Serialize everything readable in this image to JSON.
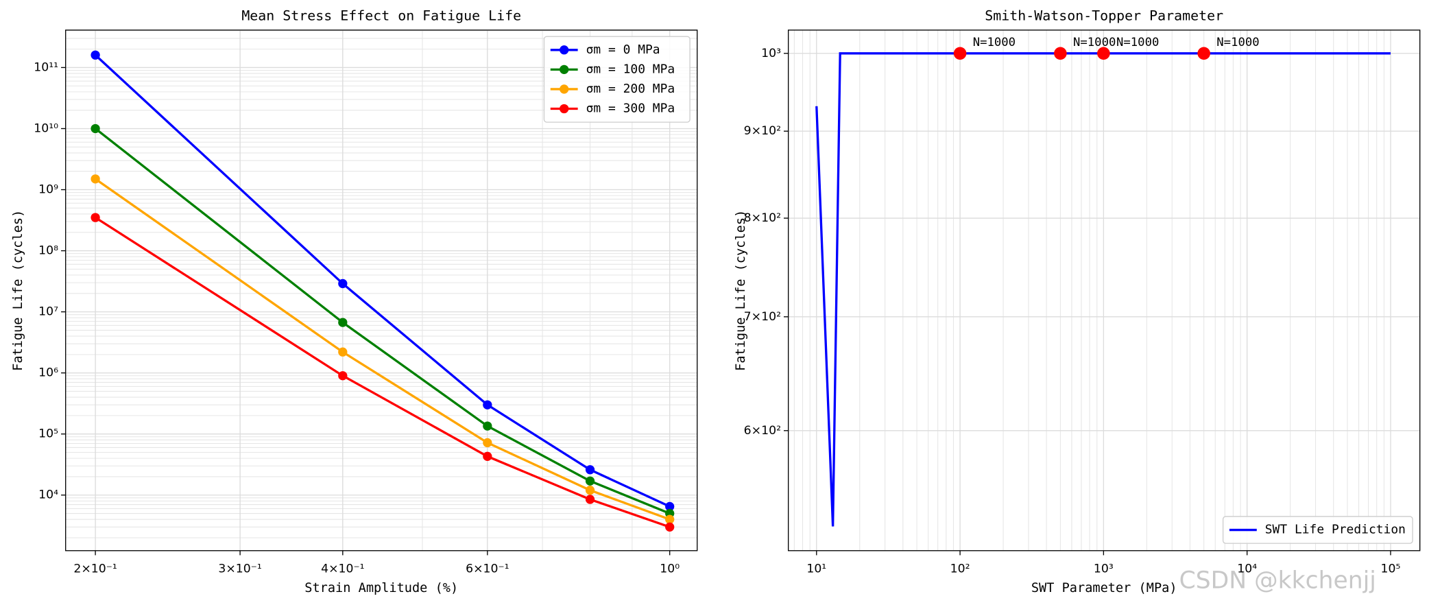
{
  "chart_data": [
    {
      "type": "line",
      "title": "Mean Stress Effect on Fatigue Life",
      "xlabel": "Strain Amplitude (%)",
      "ylabel": "Fatigue Life (cycles)",
      "xscale": "log",
      "yscale": "log",
      "xlim": [
        0.184,
        1.08
      ],
      "ylim": [
        1230,
        410000000000
      ],
      "xticks": [
        {
          "value": 0.2,
          "label": "2×10⁻¹"
        },
        {
          "value": 0.3,
          "label": "3×10⁻¹"
        },
        {
          "value": 0.4,
          "label": "4×10⁻¹"
        },
        {
          "value": 0.6,
          "label": "6×10⁻¹"
        },
        {
          "value": 1,
          "label": "10⁰"
        }
      ],
      "yticks": [
        {
          "value": 10000,
          "label": "10⁴"
        },
        {
          "value": 100000,
          "label": "10⁵"
        },
        {
          "value": 1000000,
          "label": "10⁶"
        },
        {
          "value": 10000000,
          "label": "10⁷"
        },
        {
          "value": 100000000,
          "label": "10⁸"
        },
        {
          "value": 1000000000,
          "label": "10⁹"
        },
        {
          "value": 10000000000,
          "label": "10¹⁰"
        },
        {
          "value": 100000000000,
          "label": "10¹¹"
        }
      ],
      "grid": true,
      "legend": "upper right",
      "x": [
        0.2,
        0.4,
        0.6,
        0.8,
        1.0
      ],
      "series": [
        {
          "name": "σm = 0 MPa",
          "color": "#0000ff",
          "values": [
            160000000000,
            29000000,
            300000,
            26000,
            6500
          ]
        },
        {
          "name": "σm = 100 MPa",
          "color": "#008000",
          "values": [
            10000000000,
            6700000,
            135000,
            17000,
            5000
          ]
        },
        {
          "name": "σm = 200 MPa",
          "color": "#ffa500",
          "values": [
            1500000000,
            2200000,
            72000,
            12000,
            4000
          ]
        },
        {
          "name": "σm = 300 MPa",
          "color": "#ff0000",
          "values": [
            350000000,
            900000,
            43000,
            8500,
            3000
          ]
        }
      ]
    },
    {
      "type": "line",
      "title": "Smith-Watson-Topper Parameter",
      "xlabel": "SWT Parameter (MPa)",
      "ylabel": "Fatigue Life (cycles)",
      "xscale": "log",
      "yscale": "log",
      "xlim": [
        6.36,
        160000
      ],
      "ylim": [
        510,
        1032
      ],
      "xticks": [
        {
          "value": 10,
          "label": "10¹"
        },
        {
          "value": 100,
          "label": "10²"
        },
        {
          "value": 1000,
          "label": "10³"
        },
        {
          "value": 10000,
          "label": "10⁴"
        },
        {
          "value": 100000,
          "label": "10⁵"
        }
      ],
      "yticks": [
        {
          "value": 600,
          "label": "6×10²"
        },
        {
          "value": 700,
          "label": "7×10²"
        },
        {
          "value": 800,
          "label": "8×10²"
        },
        {
          "value": 900,
          "label": "9×10²"
        },
        {
          "value": 1000,
          "label": "10³"
        }
      ],
      "grid": true,
      "legend": "lower right",
      "series": [
        {
          "name": "SWT Life Prediction",
          "color": "#0000ff",
          "x": [
            10,
            13,
            14.6,
            100000
          ],
          "values": [
            931,
            527,
            1000,
            1000
          ]
        }
      ],
      "points": {
        "color": "#ff0000",
        "x": [
          100,
          500,
          1000,
          5000
        ],
        "values": [
          1000,
          1000,
          1000,
          1000
        ],
        "labels": [
          "N=1000",
          "N=1000",
          "N=1000",
          "N=1000"
        ]
      }
    }
  ],
  "watermark": "CSDN @kkchenjj"
}
